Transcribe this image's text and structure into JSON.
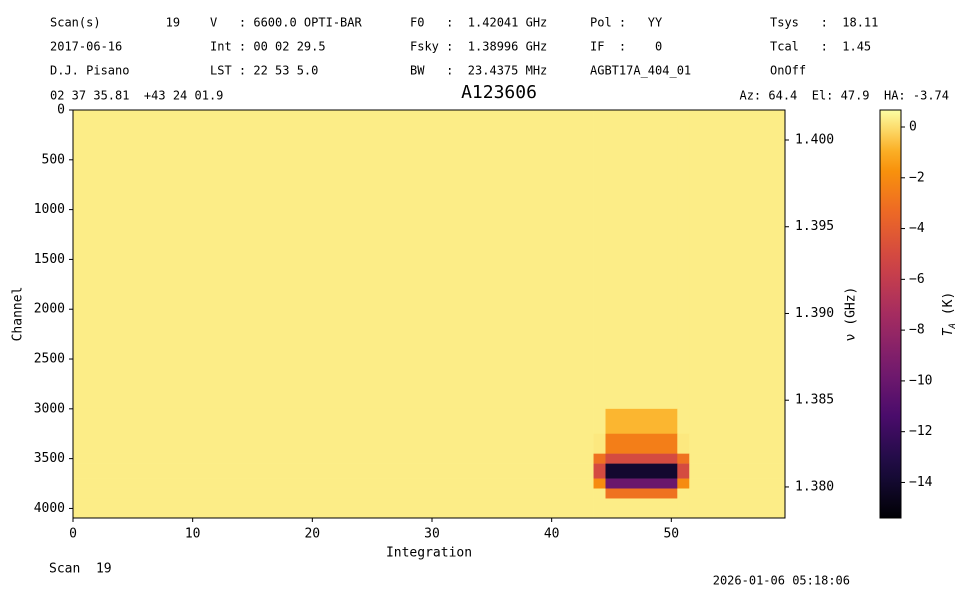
{
  "chart_data": {
    "type": "heatmap",
    "header": [
      [
        "Scan(s)         19",
        "2017-06-16",
        "D.J. Pisano"
      ],
      [
        "V   : 6600.0 OPTI-BAR",
        "Int : 00 02 29.5",
        "LST : 22 53 5.0"
      ],
      [
        "F0   :  1.42041 GHz",
        "Fsky :  1.38996 GHz",
        "BW   :  23.4375 MHz"
      ],
      [
        "Pol :   YY",
        "IF  :    0",
        "AGBT17A_404_01"
      ],
      [
        "Tsys   :  18.11",
        "Tcal   :  1.45",
        "OnOff"
      ]
    ],
    "coordinates": "02 37 35.81  +43 24 01.9",
    "title": "A123606",
    "pointing": "Az: 64.4  El: 47.9  HA: -3.74",
    "footer_scan": "Scan  19",
    "timestamp": "2026-01-06 05:18:06",
    "x_label": "Integration",
    "y_label": "Channel",
    "y2_label": "ν (GHz)",
    "colorbar_label": [
      "T",
      "A",
      " (K)"
    ],
    "colormap": "inferno",
    "xlim": [
      0,
      59.5
    ],
    "xticks": [
      0,
      10,
      20,
      30,
      40,
      50
    ],
    "ylim": [
      0,
      4096
    ],
    "yticks": [
      0,
      500,
      1000,
      1500,
      2000,
      2500,
      3000,
      3500,
      4000
    ],
    "y2lim": [
      1.40173,
      1.37821
    ],
    "y2ticks": [
      {
        "value": 1.4,
        "label": "1.400"
      },
      1.395,
      {
        "value": 1.39,
        "label": "1.390"
      },
      1.385,
      {
        "value": 1.38,
        "label": "1.380"
      }
    ],
    "clim": [
      -15.4,
      0.67
    ],
    "cticks": [
      0,
      {
        "value": -2,
        "label": "−2"
      },
      {
        "value": -4,
        "label": "−4"
      },
      {
        "value": -6,
        "label": "−6"
      },
      {
        "value": -8,
        "label": "−8"
      },
      {
        "value": -10,
        "label": "−10"
      },
      {
        "value": -12,
        "label": "−12"
      },
      {
        "value": -14,
        "label": "−14"
      }
    ],
    "xbins": [
      0,
      43.5,
      44.5,
      50.5,
      51.5,
      59.5
    ],
    "ybins": [
      0,
      3000,
      3250,
      3450,
      3550,
      3700,
      3800,
      3900,
      4096
    ],
    "z": [
      [
        0.3,
        0.3,
        0.3,
        0.3,
        0.3
      ],
      [
        0.3,
        0.3,
        -0.8,
        0.3,
        0.3
      ],
      [
        0.3,
        0.2,
        -2.5,
        0.2,
        0.3
      ],
      [
        0.3,
        -3,
        -5,
        -3,
        0.3
      ],
      [
        0.3,
        -5,
        -14,
        -5,
        0.3
      ],
      [
        0.3,
        -2,
        -10,
        -2,
        0.3
      ],
      [
        0.3,
        0.3,
        -3,
        0.3,
        0.3
      ],
      [
        0.3,
        0.3,
        0.3,
        0.3,
        0.3
      ]
    ]
  }
}
